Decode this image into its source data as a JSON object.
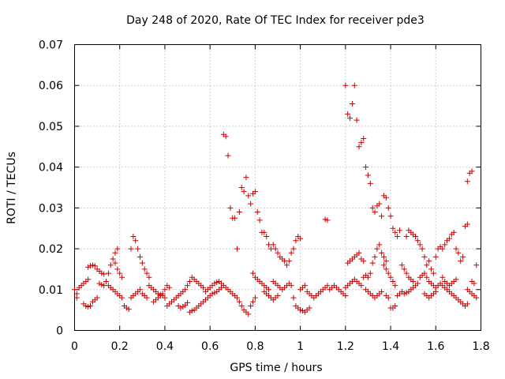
{
  "chart_data": {
    "type": "scatter",
    "title": "Day 248 of 2020, Rate Of TEC Index for receiver pde3",
    "xlabel": "GPS time / hours",
    "ylabel": "ROTI / TECUs",
    "xlim": [
      0,
      1.8
    ],
    "ylim": [
      0,
      0.07
    ],
    "xticks": [
      "0",
      "0.2",
      "0.4",
      "0.6",
      "0.8",
      "1",
      "1.2",
      "1.4",
      "1.6",
      "1.8"
    ],
    "yticks": [
      "0",
      "0.01",
      "0.02",
      "0.03",
      "0.04",
      "0.05",
      "0.06",
      "0.07"
    ],
    "grid": true,
    "marker": "+",
    "color": "#cc0000",
    "points": [
      [
        0.0,
        0.01
      ],
      [
        0.01,
        0.009
      ],
      [
        0.01,
        0.008
      ],
      [
        0.02,
        0.0105
      ],
      [
        0.03,
        0.011
      ],
      [
        0.04,
        0.0115
      ],
      [
        0.05,
        0.012
      ],
      [
        0.06,
        0.0125
      ],
      [
        0.04,
        0.0065
      ],
      [
        0.05,
        0.006
      ],
      [
        0.06,
        0.0058
      ],
      [
        0.07,
        0.006
      ],
      [
        0.08,
        0.007
      ],
      [
        0.09,
        0.0075
      ],
      [
        0.1,
        0.008
      ],
      [
        0.06,
        0.0155
      ],
      [
        0.07,
        0.0158
      ],
      [
        0.08,
        0.016
      ],
      [
        0.09,
        0.0158
      ],
      [
        0.1,
        0.015
      ],
      [
        0.11,
        0.0145
      ],
      [
        0.12,
        0.014
      ],
      [
        0.13,
        0.0138
      ],
      [
        0.11,
        0.0115
      ],
      [
        0.12,
        0.0112
      ],
      [
        0.13,
        0.011
      ],
      [
        0.14,
        0.012
      ],
      [
        0.15,
        0.014
      ],
      [
        0.16,
        0.016
      ],
      [
        0.17,
        0.0175
      ],
      [
        0.18,
        0.019
      ],
      [
        0.19,
        0.02
      ],
      [
        0.15,
        0.011
      ],
      [
        0.16,
        0.0105
      ],
      [
        0.17,
        0.01
      ],
      [
        0.18,
        0.0095
      ],
      [
        0.19,
        0.009
      ],
      [
        0.2,
        0.0085
      ],
      [
        0.21,
        0.008
      ],
      [
        0.22,
        0.006
      ],
      [
        0.23,
        0.0055
      ],
      [
        0.24,
        0.0052
      ],
      [
        0.18,
        0.0165
      ],
      [
        0.19,
        0.015
      ],
      [
        0.2,
        0.014
      ],
      [
        0.21,
        0.013
      ],
      [
        0.25,
        0.02
      ],
      [
        0.26,
        0.023
      ],
      [
        0.27,
        0.022
      ],
      [
        0.28,
        0.02
      ],
      [
        0.29,
        0.018
      ],
      [
        0.3,
        0.0165
      ],
      [
        0.31,
        0.015
      ],
      [
        0.32,
        0.014
      ],
      [
        0.33,
        0.013
      ],
      [
        0.25,
        0.008
      ],
      [
        0.26,
        0.0085
      ],
      [
        0.27,
        0.009
      ],
      [
        0.28,
        0.0095
      ],
      [
        0.29,
        0.01
      ],
      [
        0.3,
        0.009
      ],
      [
        0.31,
        0.0085
      ],
      [
        0.32,
        0.008
      ],
      [
        0.33,
        0.011
      ],
      [
        0.34,
        0.0105
      ],
      [
        0.35,
        0.01
      ],
      [
        0.36,
        0.0095
      ],
      [
        0.37,
        0.009
      ],
      [
        0.38,
        0.0088
      ],
      [
        0.39,
        0.0085
      ],
      [
        0.4,
        0.008
      ],
      [
        0.35,
        0.007
      ],
      [
        0.36,
        0.0075
      ],
      [
        0.37,
        0.008
      ],
      [
        0.38,
        0.0085
      ],
      [
        0.39,
        0.009
      ],
      [
        0.4,
        0.01
      ],
      [
        0.41,
        0.011
      ],
      [
        0.42,
        0.0105
      ],
      [
        0.41,
        0.006
      ],
      [
        0.42,
        0.0065
      ],
      [
        0.43,
        0.007
      ],
      [
        0.44,
        0.0075
      ],
      [
        0.45,
        0.008
      ],
      [
        0.46,
        0.0085
      ],
      [
        0.47,
        0.009
      ],
      [
        0.48,
        0.0095
      ],
      [
        0.49,
        0.01
      ],
      [
        0.46,
        0.006
      ],
      [
        0.47,
        0.0055
      ],
      [
        0.48,
        0.0058
      ],
      [
        0.49,
        0.0062
      ],
      [
        0.5,
        0.0068
      ],
      [
        0.5,
        0.011
      ],
      [
        0.51,
        0.012
      ],
      [
        0.52,
        0.013
      ],
      [
        0.53,
        0.0125
      ],
      [
        0.54,
        0.012
      ],
      [
        0.55,
        0.0115
      ],
      [
        0.56,
        0.011
      ],
      [
        0.57,
        0.0105
      ],
      [
        0.51,
        0.0045
      ],
      [
        0.52,
        0.0048
      ],
      [
        0.53,
        0.005
      ],
      [
        0.54,
        0.0055
      ],
      [
        0.55,
        0.006
      ],
      [
        0.56,
        0.0065
      ],
      [
        0.57,
        0.007
      ],
      [
        0.58,
        0.0075
      ],
      [
        0.59,
        0.008
      ],
      [
        0.58,
        0.0095
      ],
      [
        0.59,
        0.01
      ],
      [
        0.6,
        0.0105
      ],
      [
        0.61,
        0.011
      ],
      [
        0.62,
        0.0115
      ],
      [
        0.63,
        0.0118
      ],
      [
        0.64,
        0.012
      ],
      [
        0.65,
        0.0115
      ],
      [
        0.6,
        0.0085
      ],
      [
        0.61,
        0.009
      ],
      [
        0.62,
        0.0092
      ],
      [
        0.63,
        0.0095
      ],
      [
        0.64,
        0.01
      ],
      [
        0.65,
        0.0105
      ],
      [
        0.66,
        0.048
      ],
      [
        0.67,
        0.0475
      ],
      [
        0.68,
        0.0428
      ],
      [
        0.69,
        0.03
      ],
      [
        0.7,
        0.0275
      ],
      [
        0.71,
        0.0275
      ],
      [
        0.72,
        0.02
      ],
      [
        0.73,
        0.029
      ],
      [
        0.66,
        0.011
      ],
      [
        0.67,
        0.0105
      ],
      [
        0.68,
        0.01
      ],
      [
        0.69,
        0.0095
      ],
      [
        0.7,
        0.009
      ],
      [
        0.71,
        0.0085
      ],
      [
        0.72,
        0.008
      ],
      [
        0.73,
        0.007
      ],
      [
        0.74,
        0.035
      ],
      [
        0.75,
        0.034
      ],
      [
        0.76,
        0.0375
      ],
      [
        0.77,
        0.033
      ],
      [
        0.78,
        0.031
      ],
      [
        0.79,
        0.0335
      ],
      [
        0.8,
        0.034
      ],
      [
        0.74,
        0.006
      ],
      [
        0.75,
        0.005
      ],
      [
        0.76,
        0.0045
      ],
      [
        0.77,
        0.004
      ],
      [
        0.78,
        0.006
      ],
      [
        0.79,
        0.007
      ],
      [
        0.8,
        0.008
      ],
      [
        0.81,
        0.029
      ],
      [
        0.82,
        0.027
      ],
      [
        0.83,
        0.024
      ],
      [
        0.84,
        0.024
      ],
      [
        0.85,
        0.023
      ],
      [
        0.86,
        0.021
      ],
      [
        0.87,
        0.02
      ],
      [
        0.88,
        0.021
      ],
      [
        0.89,
        0.02
      ],
      [
        0.9,
        0.019
      ],
      [
        0.79,
        0.014
      ],
      [
        0.8,
        0.013
      ],
      [
        0.81,
        0.0125
      ],
      [
        0.82,
        0.012
      ],
      [
        0.83,
        0.0115
      ],
      [
        0.84,
        0.011
      ],
      [
        0.85,
        0.0105
      ],
      [
        0.86,
        0.01
      ],
      [
        0.84,
        0.0095
      ],
      [
        0.85,
        0.009
      ],
      [
        0.86,
        0.0085
      ],
      [
        0.87,
        0.008
      ],
      [
        0.88,
        0.0075
      ],
      [
        0.89,
        0.008
      ],
      [
        0.9,
        0.0085
      ],
      [
        0.91,
        0.018
      ],
      [
        0.92,
        0.0175
      ],
      [
        0.93,
        0.017
      ],
      [
        0.94,
        0.016
      ],
      [
        0.95,
        0.017
      ],
      [
        0.96,
        0.019
      ],
      [
        0.97,
        0.02
      ],
      [
        0.98,
        0.022
      ],
      [
        0.99,
        0.023
      ],
      [
        1.0,
        0.0225
      ],
      [
        0.88,
        0.012
      ],
      [
        0.89,
        0.0115
      ],
      [
        0.9,
        0.011
      ],
      [
        0.91,
        0.0105
      ],
      [
        0.92,
        0.01
      ],
      [
        0.93,
        0.0105
      ],
      [
        0.94,
        0.011
      ],
      [
        0.95,
        0.0115
      ],
      [
        0.96,
        0.011
      ],
      [
        0.97,
        0.008
      ],
      [
        0.98,
        0.006
      ],
      [
        0.99,
        0.0055
      ],
      [
        1.0,
        0.005
      ],
      [
        1.01,
        0.0048
      ],
      [
        1.02,
        0.0045
      ],
      [
        1.03,
        0.005
      ],
      [
        1.04,
        0.0055
      ],
      [
        1.0,
        0.01
      ],
      [
        1.01,
        0.0105
      ],
      [
        1.02,
        0.011
      ],
      [
        1.03,
        0.0095
      ],
      [
        1.04,
        0.009
      ],
      [
        1.05,
        0.0085
      ],
      [
        1.06,
        0.008
      ],
      [
        1.07,
        0.0085
      ],
      [
        1.08,
        0.009
      ],
      [
        1.09,
        0.0095
      ],
      [
        1.1,
        0.01
      ],
      [
        1.11,
        0.0105
      ],
      [
        1.12,
        0.011
      ],
      [
        1.11,
        0.0272
      ],
      [
        1.12,
        0.027
      ],
      [
        1.13,
        0.01
      ],
      [
        1.14,
        0.0105
      ],
      [
        1.15,
        0.011
      ],
      [
        1.16,
        0.0105
      ],
      [
        1.17,
        0.01
      ],
      [
        1.18,
        0.0095
      ],
      [
        1.19,
        0.009
      ],
      [
        1.2,
        0.0085
      ],
      [
        1.2,
        0.06
      ],
      [
        1.21,
        0.053
      ],
      [
        1.22,
        0.052
      ],
      [
        1.23,
        0.0555
      ],
      [
        1.24,
        0.06
      ],
      [
        1.25,
        0.0515
      ],
      [
        1.26,
        0.045
      ],
      [
        1.27,
        0.046
      ],
      [
        1.28,
        0.047
      ],
      [
        1.29,
        0.04
      ],
      [
        1.3,
        0.038
      ],
      [
        1.31,
        0.036
      ],
      [
        1.32,
        0.03
      ],
      [
        1.33,
        0.029
      ],
      [
        1.34,
        0.0305
      ],
      [
        1.35,
        0.031
      ],
      [
        1.36,
        0.028
      ],
      [
        1.37,
        0.033
      ],
      [
        1.38,
        0.0325
      ],
      [
        1.39,
        0.03
      ],
      [
        1.4,
        0.028
      ],
      [
        1.41,
        0.025
      ],
      [
        1.42,
        0.024
      ],
      [
        1.43,
        0.023
      ],
      [
        1.44,
        0.0245
      ],
      [
        1.21,
        0.0165
      ],
      [
        1.22,
        0.017
      ],
      [
        1.23,
        0.0175
      ],
      [
        1.24,
        0.018
      ],
      [
        1.25,
        0.0185
      ],
      [
        1.26,
        0.019
      ],
      [
        1.27,
        0.0175
      ],
      [
        1.28,
        0.017
      ],
      [
        1.2,
        0.0105
      ],
      [
        1.21,
        0.011
      ],
      [
        1.22,
        0.0115
      ],
      [
        1.23,
        0.012
      ],
      [
        1.24,
        0.0125
      ],
      [
        1.25,
        0.012
      ],
      [
        1.26,
        0.0115
      ],
      [
        1.27,
        0.011
      ],
      [
        1.28,
        0.013
      ],
      [
        1.29,
        0.0135
      ],
      [
        1.3,
        0.013
      ],
      [
        1.31,
        0.014
      ],
      [
        1.32,
        0.0165
      ],
      [
        1.33,
        0.018
      ],
      [
        1.34,
        0.02
      ],
      [
        1.35,
        0.021
      ],
      [
        1.36,
        0.019
      ],
      [
        1.37,
        0.018
      ],
      [
        1.38,
        0.017
      ],
      [
        1.29,
        0.01
      ],
      [
        1.3,
        0.0095
      ],
      [
        1.31,
        0.009
      ],
      [
        1.32,
        0.0085
      ],
      [
        1.33,
        0.008
      ],
      [
        1.34,
        0.0085
      ],
      [
        1.35,
        0.009
      ],
      [
        1.36,
        0.0095
      ],
      [
        1.37,
        0.016
      ],
      [
        1.38,
        0.015
      ],
      [
        1.39,
        0.014
      ],
      [
        1.4,
        0.013
      ],
      [
        1.41,
        0.012
      ],
      [
        1.42,
        0.011
      ],
      [
        1.38,
        0.0085
      ],
      [
        1.39,
        0.008
      ],
      [
        1.4,
        0.0055
      ],
      [
        1.41,
        0.0055
      ],
      [
        1.42,
        0.006
      ],
      [
        1.43,
        0.0085
      ],
      [
        1.44,
        0.009
      ],
      [
        1.45,
        0.016
      ],
      [
        1.46,
        0.015
      ],
      [
        1.47,
        0.014
      ],
      [
        1.48,
        0.013
      ],
      [
        1.49,
        0.0125
      ],
      [
        1.5,
        0.012
      ],
      [
        1.45,
        0.0095
      ],
      [
        1.46,
        0.009
      ],
      [
        1.47,
        0.0092
      ],
      [
        1.48,
        0.0095
      ],
      [
        1.49,
        0.01
      ],
      [
        1.5,
        0.0105
      ],
      [
        1.51,
        0.011
      ],
      [
        1.52,
        0.0115
      ],
      [
        1.47,
        0.023
      ],
      [
        1.48,
        0.0245
      ],
      [
        1.49,
        0.024
      ],
      [
        1.5,
        0.0235
      ],
      [
        1.51,
        0.023
      ],
      [
        1.52,
        0.022
      ],
      [
        1.53,
        0.021
      ],
      [
        1.54,
        0.02
      ],
      [
        1.53,
        0.013
      ],
      [
        1.54,
        0.0135
      ],
      [
        1.55,
        0.014
      ],
      [
        1.56,
        0.013
      ],
      [
        1.57,
        0.012
      ],
      [
        1.58,
        0.0115
      ],
      [
        1.59,
        0.011
      ],
      [
        1.6,
        0.0105
      ],
      [
        1.55,
        0.018
      ],
      [
        1.56,
        0.016
      ],
      [
        1.57,
        0.017
      ],
      [
        1.58,
        0.015
      ],
      [
        1.59,
        0.014
      ],
      [
        1.55,
        0.009
      ],
      [
        1.56,
        0.0085
      ],
      [
        1.57,
        0.008
      ],
      [
        1.58,
        0.0085
      ],
      [
        1.59,
        0.009
      ],
      [
        1.6,
        0.0095
      ],
      [
        1.6,
        0.018
      ],
      [
        1.61,
        0.02
      ],
      [
        1.62,
        0.0205
      ],
      [
        1.63,
        0.02
      ],
      [
        1.64,
        0.021
      ],
      [
        1.65,
        0.022
      ],
      [
        1.66,
        0.0225
      ],
      [
        1.67,
        0.0235
      ],
      [
        1.68,
        0.024
      ],
      [
        1.61,
        0.011
      ],
      [
        1.62,
        0.0115
      ],
      [
        1.63,
        0.011
      ],
      [
        1.64,
        0.0105
      ],
      [
        1.65,
        0.01
      ],
      [
        1.66,
        0.0095
      ],
      [
        1.67,
        0.009
      ],
      [
        1.68,
        0.0085
      ],
      [
        1.63,
        0.013
      ],
      [
        1.64,
        0.012
      ],
      [
        1.65,
        0.0115
      ],
      [
        1.66,
        0.011
      ],
      [
        1.67,
        0.0115
      ],
      [
        1.68,
        0.012
      ],
      [
        1.69,
        0.0125
      ],
      [
        1.69,
        0.02
      ],
      [
        1.7,
        0.019
      ],
      [
        1.71,
        0.017
      ],
      [
        1.72,
        0.018
      ],
      [
        1.73,
        0.0255
      ],
      [
        1.74,
        0.026
      ],
      [
        1.69,
        0.008
      ],
      [
        1.7,
        0.0075
      ],
      [
        1.71,
        0.007
      ],
      [
        1.72,
        0.0065
      ],
      [
        1.73,
        0.006
      ],
      [
        1.74,
        0.0065
      ],
      [
        1.74,
        0.0365
      ],
      [
        1.75,
        0.0385
      ],
      [
        1.76,
        0.039
      ],
      [
        1.74,
        0.01
      ],
      [
        1.75,
        0.0095
      ],
      [
        1.76,
        0.009
      ],
      [
        1.77,
        0.0085
      ],
      [
        1.78,
        0.008
      ],
      [
        1.76,
        0.012
      ],
      [
        1.77,
        0.0115
      ],
      [
        1.78,
        0.016
      ]
    ]
  }
}
